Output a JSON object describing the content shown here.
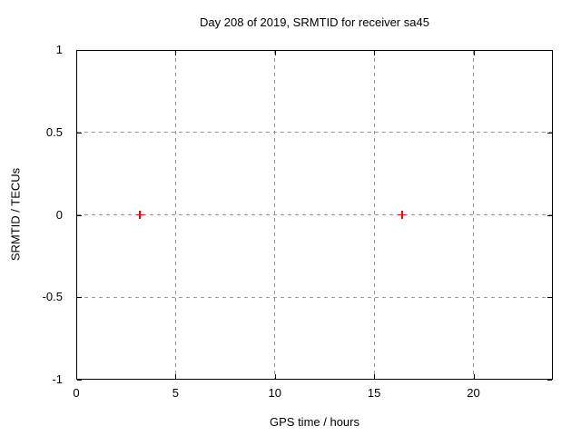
{
  "chart_data": {
    "type": "scatter",
    "title": "Day 208 of 2019, SRMTID for receiver sa45",
    "xlabel": "GPS time / hours",
    "ylabel": "SRMTID / TECUs",
    "xlim": [
      0,
      24
    ],
    "ylim": [
      -1,
      1
    ],
    "xticks": [
      0,
      5,
      10,
      15,
      20
    ],
    "xtick_labels": [
      "0",
      "5",
      "10",
      "15",
      "20"
    ],
    "yticks": [
      1,
      0.5,
      0,
      -0.5,
      -1
    ],
    "ytick_labels": [
      "1",
      "0.5",
      "0",
      "-0.5",
      "-1"
    ],
    "grid": true,
    "grid_style": "dashed",
    "tick_style": "inward-mirrored",
    "legend": "none",
    "series": [
      {
        "marker": "plus",
        "color": "#ff0000",
        "points": [
          {
            "x": 3.2,
            "y": 0
          },
          {
            "x": 16.4,
            "y": 0
          }
        ]
      }
    ],
    "colors": {
      "background": "#ffffff",
      "axis": "#000000",
      "grid": "#999999",
      "text": "#000000",
      "marker": "#ff0000"
    }
  }
}
